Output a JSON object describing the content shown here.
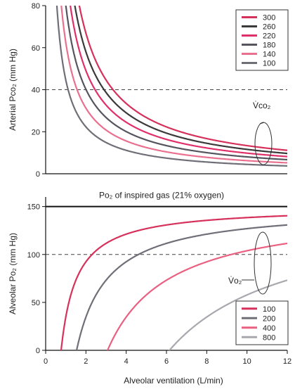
{
  "chart_data": [
    {
      "type": "line",
      "ylabel": "Arterial Pco₂ (mm Hg)",
      "xlim": [
        0,
        12
      ],
      "ylim": [
        0,
        80
      ],
      "yticks": [
        0,
        20,
        40,
        60,
        80
      ],
      "reference_line": {
        "y": 40,
        "style": "dashed"
      },
      "annotation": "V̇co₂",
      "legend_position": "top-right",
      "series": [
        {
          "name": "300",
          "k": 133.8,
          "color": "#d6315a"
        },
        {
          "name": "260",
          "k": 116.0,
          "color": "#3a3a3a"
        },
        {
          "name": "220",
          "k": 98.1,
          "color": "#e0306a"
        },
        {
          "name": "180",
          "k": 80.3,
          "color": "#555560"
        },
        {
          "name": "140",
          "k": 62.4,
          "color": "#ea7090"
        },
        {
          "name": "100",
          "k": 44.6,
          "color": "#6f6f78"
        }
      ],
      "model": "y = k / x"
    },
    {
      "type": "line",
      "ylabel": "Alveolar Po₂ (mm Hg)",
      "xlabel": "Alveolar ventilation (L/min)",
      "xlim": [
        0,
        12
      ],
      "ylim": [
        0,
        160
      ],
      "xticks": [
        0,
        2,
        4,
        6,
        8,
        10,
        12
      ],
      "yticks": [
        0,
        50,
        100,
        150
      ],
      "reference_line": {
        "y": 100,
        "style": "dashed"
      },
      "inspired_line": {
        "y": 150,
        "label": "Po₂ of inspired gas (21% oxygen)"
      },
      "annotation": "V̇o₂",
      "legend_position": "bottom-right",
      "series": [
        {
          "name": "100",
          "k": 82.9,
          "color": "#d6315a"
        },
        {
          "name": "200",
          "k": 165.8,
          "color": "#6f6f78"
        },
        {
          "name": "400",
          "k": 331.6,
          "color": "#ea6080"
        },
        {
          "name": "800",
          "k": 663.2,
          "color": "#a8a8ae"
        }
      ],
      "model": "y = 150 - 1.2 * k / (x * 0.863)"
    }
  ]
}
